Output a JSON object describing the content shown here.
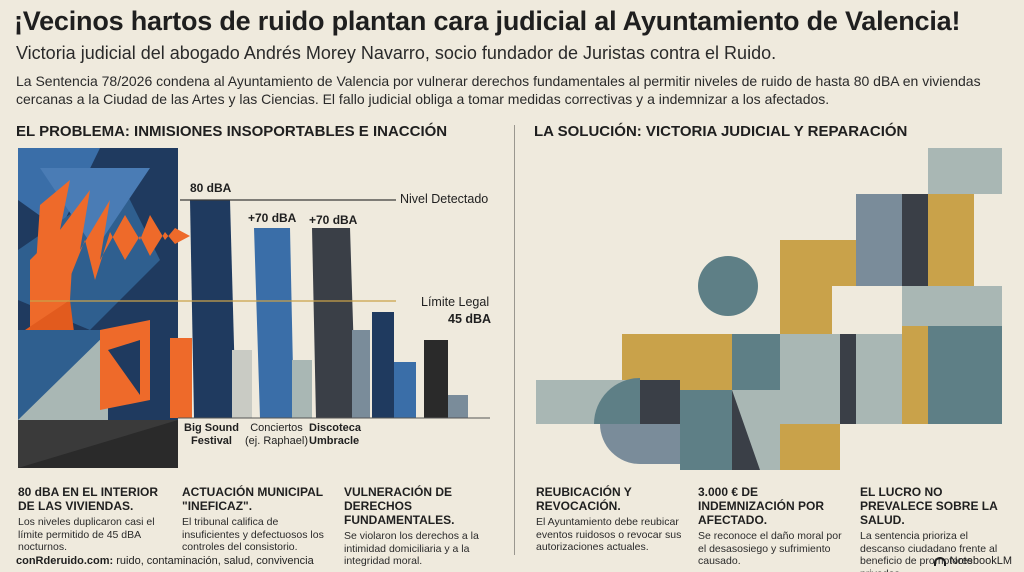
{
  "header": {
    "title": "¡Vecinos hartos de ruido plantan cara judicial al Ayuntamiento de Valencia!",
    "subtitle": "Victoria judicial del abogado Andrés Morey Navarro, socio fundador de Juristas contra el Ruido.",
    "summary": "La Sentencia 78/2026 condena al Ayuntamiento de Valencia por vulnerar derechos fundamentales al permitir niveles de ruido de hasta 80 dBA en viviendas cercanas a la Ciudad de las Artes y las Ciencias. El fallo judicial obliga a tomar medidas correctivas y a indemnizar a los afectados."
  },
  "left": {
    "heading": "EL PROBLEMA: INMISIONES INSOPORTABLES E INACCIÓN",
    "detected_label": "Nivel Detectado",
    "legal_label": "Límite Legal",
    "legal_value": "45 dBA",
    "bars": [
      {
        "value_label": "80 dBA",
        "name_line1": "Big Sound",
        "name_line2": "Festival",
        "bold": true
      },
      {
        "value_label": "+70 dBA",
        "name_line1": "Conciertos",
        "name_line2": "(ej. Raphael)",
        "bold": false
      },
      {
        "value_label": "+70 dBA",
        "name_line1": "Discoteca",
        "name_line2": "Umbracle",
        "bold": true
      }
    ],
    "cards": [
      {
        "title": "80 dBA EN EL INTERIOR DE LAS VIVIENDAS.",
        "text": "Los niveles duplicaron casi el límite permitido de 45 dBA nocturnos."
      },
      {
        "title": "ACTUACIÓN MUNICIPAL \"INEFICAZ\".",
        "text": "El tribunal califica de insuficientes y defectuosos los controles del consistorio."
      },
      {
        "title": "VULNERACIÓN DE DERECHOS FUNDAMENTALES.",
        "text": "Se violaron los derechos a la intimidad domiciliaria y a la integridad moral."
      }
    ]
  },
  "right": {
    "heading": "LA SOLUCIÓN: VICTORIA JUDICIAL Y REPARACIÓN",
    "cards": [
      {
        "title": "REUBICACIÓN Y REVOCACIÓN.",
        "text": "El Ayuntamiento debe reubicar eventos ruidosos o revocar sus autorizaciones actuales."
      },
      {
        "title": "3.000 € DE INDEMNIZACIÓN POR AFECTADO.",
        "text": "Se reconoce el daño moral por el desasosiego y sufrimiento causado."
      },
      {
        "title": "EL LUCRO NO PREVALECE SOBRE LA SALUD.",
        "text": "La sentencia prioriza el descanso ciudadano frente al beneficio de promotores privados."
      }
    ]
  },
  "footer": {
    "site": "conRderuido.com:",
    "tags": " ruido, contaminación, salud, convivencia",
    "brand": "NotebookLM"
  },
  "colors": {
    "background": "#efeadd",
    "navy": "#1f3a5f",
    "orange": "#ee6a2a",
    "blue": "#3a6ea8",
    "slate": "#7a8c9a",
    "teal": "#5e7f86",
    "mustard": "#c9a24a",
    "sage": "#a9b7b4"
  }
}
